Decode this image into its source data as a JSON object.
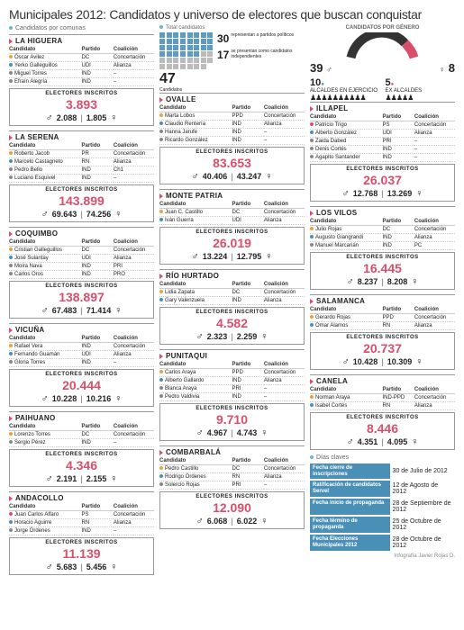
{
  "title": "Municipales 2012: Candidatos y universo de electores que buscan conquistar",
  "labels": {
    "porComunas": "Candidatos por comunas",
    "total": "Total candidatos",
    "genero": "CANDIDATOS POR GÉNERO",
    "fechas": "Días claves",
    "electores": "ELECTORES INSCRITOS",
    "cand": "Candidato",
    "partido": "Partido",
    "coal": "Coalición"
  },
  "colors": {
    "accent": "#d94f6b",
    "blue": "#4a8fb5",
    "orange": "#e8a33d",
    "green": "#6bb55e",
    "teal": "#5bb5a5",
    "grey": "#888"
  },
  "summary": {
    "totalCand": 47,
    "partyCand": 30,
    "indepCand": 17,
    "partyText": "representan a partidos políticos",
    "indepText": "se presentan como candidatos independientes",
    "male": 39,
    "female": 8,
    "enEjercicio": 10,
    "enEjercicioLabel": "ALCALDES EN EJERCICIO",
    "exAlcaldes": 5,
    "exAlcaldesLabel": "EX ALCALDES"
  },
  "comunas": [
    {
      "name": "LA HIGUERA",
      "col": 0,
      "cands": [
        [
          "Óscar Avilez",
          "DC",
          "Concertación",
          "#e8a33d"
        ],
        [
          "Yerko Galleguillos",
          "UDI",
          "Alianza",
          "#4a8fb5"
        ],
        [
          "Miguel Torres",
          "IND",
          "–",
          "#888"
        ],
        [
          "Efraín Alegría",
          "IND",
          "–",
          "#888"
        ]
      ],
      "total": "3.893",
      "m": "2.088",
      "f": "1.805"
    },
    {
      "name": "LA SERENA",
      "col": 0,
      "cands": [
        [
          "Roberto Jacob",
          "PR",
          "Concertación",
          "#e8a33d"
        ],
        [
          "Marcelo Castagneto",
          "RN",
          "Alianza",
          "#4a8fb5"
        ],
        [
          "Pedro Bello",
          "IND",
          "Ch1",
          "#888"
        ],
        [
          "Luciano Esquivel",
          "IND",
          "–",
          "#888"
        ]
      ],
      "total": "143.899",
      "m": "69.643",
      "f": "74.256"
    },
    {
      "name": "COQUIMBO",
      "col": 0,
      "cands": [
        [
          "Cristian Galleguillos",
          "DC",
          "Concertación",
          "#e8a33d"
        ],
        [
          "José Sulantay",
          "UDI",
          "Alianza",
          "#4a8fb5"
        ],
        [
          "Moira Nava",
          "IND",
          "PRI",
          "#888"
        ],
        [
          "Carlos Oros",
          "IND",
          "PRO",
          "#888"
        ]
      ],
      "total": "138.897",
      "m": "67.483",
      "f": "71.414"
    },
    {
      "name": "VICUÑA",
      "col": 0,
      "cands": [
        [
          "Rafael Vera",
          "IND",
          "Concertación",
          "#e8a33d"
        ],
        [
          "Fernando Guamán",
          "UDI",
          "Alianza",
          "#4a8fb5"
        ],
        [
          "Gloria Torres",
          "IND",
          "–",
          "#888"
        ]
      ],
      "total": "20.444",
      "m": "10.228",
      "f": "10.216"
    },
    {
      "name": "PAIHUANO",
      "col": 0,
      "cands": [
        [
          "Lorenzo Torres",
          "DC",
          "Concertación",
          "#e8a33d"
        ],
        [
          "Sergio Pérez",
          "IND",
          "–",
          "#888"
        ]
      ],
      "total": "4.346",
      "m": "2.191",
      "f": "2.155"
    },
    {
      "name": "ANDACOLLO",
      "col": 0,
      "cands": [
        [
          "Juan Carlos Alfaro",
          "PS",
          "Concertación",
          "#d94f6b"
        ],
        [
          "Horacio Aguirre",
          "RN",
          "Alianza",
          "#4a8fb5"
        ],
        [
          "Jorge Órdenes",
          "IND",
          "–",
          "#888"
        ]
      ],
      "total": "11.139",
      "m": "5.683",
      "f": "5.456"
    },
    {
      "name": "OVALLE",
      "col": 1,
      "cands": [
        [
          "Marta Lobos",
          "PPD",
          "Concertación",
          "#e8a33d"
        ],
        [
          "Claudio Rentería",
          "IND",
          "Alianza",
          "#4a8fb5"
        ],
        [
          "Hanna Jarufe",
          "IND",
          "–",
          "#888"
        ],
        [
          "Ricardo González",
          "IND",
          "–",
          "#888"
        ]
      ],
      "total": "83.653",
      "m": "40.406",
      "f": "43.247"
    },
    {
      "name": "MONTE PATRIA",
      "col": 1,
      "cands": [
        [
          "Juan C. Castillo",
          "DC",
          "Concertación",
          "#e8a33d"
        ],
        [
          "Iván Guerra",
          "UDI",
          "Alianza",
          "#4a8fb5"
        ]
      ],
      "total": "26.019",
      "m": "13.224",
      "f": "12.795"
    },
    {
      "name": "RÍO HURTADO",
      "col": 1,
      "cands": [
        [
          "Lidia Zapata",
          "DC",
          "Concertación",
          "#e8a33d"
        ],
        [
          "Gary Valenzuela",
          "IND",
          "Alianza",
          "#4a8fb5"
        ]
      ],
      "total": "4.582",
      "m": "2.323",
      "f": "2.259"
    },
    {
      "name": "PUNITAQUI",
      "col": 1,
      "cands": [
        [
          "Carlos Araya",
          "PPD",
          "Concertación",
          "#e8a33d"
        ],
        [
          "Alberto Gallardo",
          "IND",
          "Alianza",
          "#4a8fb5"
        ],
        [
          "Blanca Araya",
          "PRI",
          "–",
          "#888"
        ],
        [
          "Pedro Valdivia",
          "IND",
          "–",
          "#888"
        ]
      ],
      "total": "9.710",
      "m": "4.967",
      "f": "4.743"
    },
    {
      "name": "COMBARBALÁ",
      "col": 1,
      "cands": [
        [
          "Pedro Castillo",
          "DC",
          "Concertación",
          "#e8a33d"
        ],
        [
          "Rodrigo Órdenes",
          "RN",
          "Alianza",
          "#4a8fb5"
        ],
        [
          "Solercio Rojas",
          "PRI",
          "–",
          "#888"
        ]
      ],
      "total": "12.090",
      "m": "6.068",
      "f": "6.022"
    },
    {
      "name": "ILLAPEL",
      "col": 2,
      "cands": [
        [
          "Patricio Trigo",
          "PS",
          "Concertación",
          "#d94f6b"
        ],
        [
          "Alberto González",
          "UDI",
          "Alianza",
          "#4a8fb5"
        ],
        [
          "Zaida Dabed",
          "PRI",
          "–",
          "#888"
        ],
        [
          "Denis Cortés",
          "IND",
          "–",
          "#888"
        ],
        [
          "Agapito Santander",
          "IND",
          "–",
          "#888"
        ]
      ],
      "total": "26.037",
      "m": "12.768",
      "f": "13.269"
    },
    {
      "name": "LOS VILOS",
      "col": 2,
      "cands": [
        [
          "Julio Rojas",
          "DC",
          "Concertación",
          "#e8a33d"
        ],
        [
          "Augusto Giangrandi",
          "IND",
          "Alianza",
          "#4a8fb5"
        ],
        [
          "Manuel Marcarián",
          "IND",
          "PC",
          "#888"
        ]
      ],
      "total": "16.445",
      "m": "8.237",
      "f": "8.208"
    },
    {
      "name": "SALAMANCA",
      "col": 2,
      "cands": [
        [
          "Gerardo Rojas",
          "PPD",
          "Concertación",
          "#e8a33d"
        ],
        [
          "Omar Alamos",
          "RN",
          "Alianza",
          "#4a8fb5"
        ]
      ],
      "total": "20.737",
      "m": "10.428",
      "f": "10.309"
    },
    {
      "name": "CANELA",
      "col": 2,
      "cands": [
        [
          "Norman Araya",
          "IND-PPD",
          "Concertación",
          "#e8a33d"
        ],
        [
          "Isabel Cortés",
          "RN",
          "Alianza",
          "#4a8fb5"
        ]
      ],
      "total": "8.446",
      "m": "4.351",
      "f": "4.095"
    }
  ],
  "fechas": [
    [
      "Fecha cierre de inscripciones",
      "30 de Julio de 2012"
    ],
    [
      "Ratificación de candidatos Servel",
      "12 de Agosto de 2012"
    ],
    [
      "Fecha inicio de propaganda",
      "28 de Septiembre de 2012"
    ],
    [
      "Fecha término de propaganda",
      "25 de Octubre de 2012"
    ],
    [
      "Fecha Elecciones Municipales 2012",
      "28 de Octubre de 2012"
    ]
  ],
  "credit": "Infografía Javier Rojas D."
}
